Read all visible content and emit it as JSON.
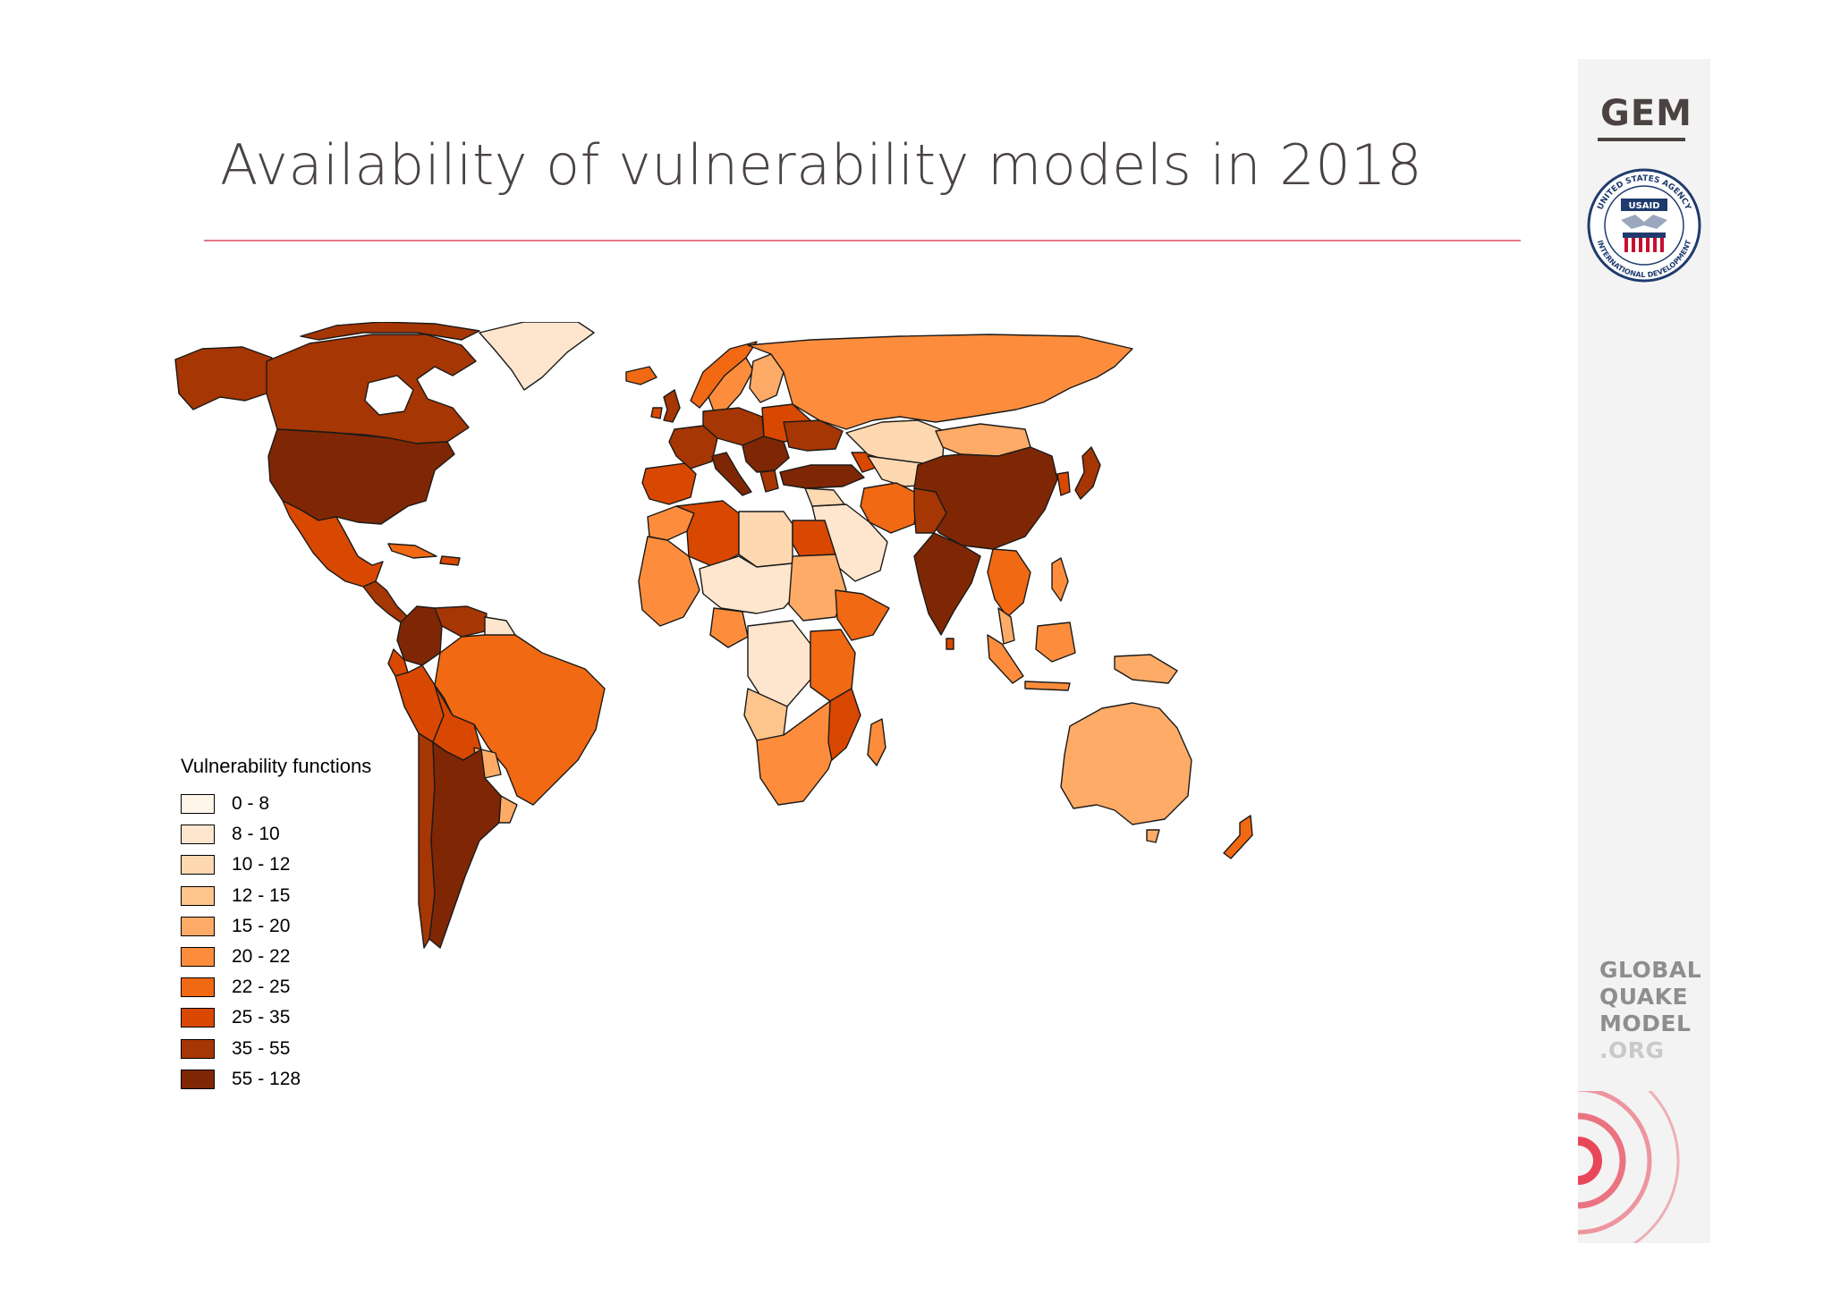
{
  "slide": {
    "title": "Availability of vulnerability models in 2018"
  },
  "sidebar": {
    "gem_logo_text": "GEM",
    "seal": {
      "top_text": "UNITED STATES AGENCY",
      "bottom_text": "INTERNATIONAL DEVELOPMENT",
      "badge_text": "USAID",
      "icon": "handshake-icon"
    },
    "brand_lines": [
      "GLOBAL",
      "QUAKE",
      "MODEL",
      ".ORG"
    ],
    "accent_color": "#e8475a"
  },
  "map": {
    "legend_title": "Vulnerability functions",
    "classes": [
      {
        "label": "0 - 8",
        "color": "#fff5eb"
      },
      {
        "label": "8 - 10",
        "color": "#fee6ce"
      },
      {
        "label": "10 - 12",
        "color": "#fdd8b0"
      },
      {
        "label": "12 - 15",
        "color": "#fdc48c"
      },
      {
        "label": "15 - 20",
        "color": "#fdab66"
      },
      {
        "label": "20 - 22",
        "color": "#fd8d3c"
      },
      {
        "label": "22 - 25",
        "color": "#f16913"
      },
      {
        "label": "25 - 35",
        "color": "#d94801"
      },
      {
        "label": "35 - 55",
        "color": "#a63603"
      },
      {
        "label": "55 - 128",
        "color": "#7f2704"
      }
    ]
  }
}
